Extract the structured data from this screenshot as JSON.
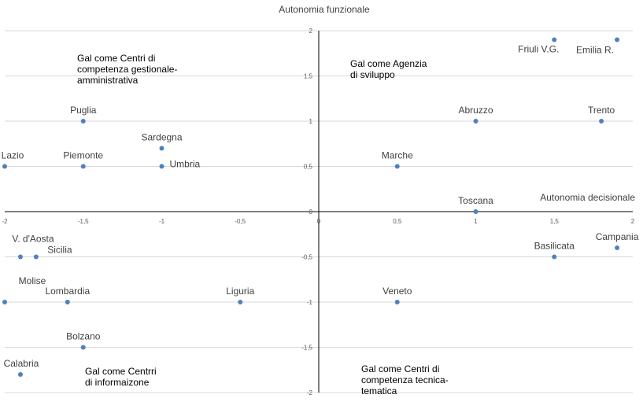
{
  "chart_data": {
    "type": "scatter",
    "title": "",
    "xlabel": "Autonomia decisionale",
    "ylabel": "Autonomia funzionale",
    "xlim": [
      -2,
      2
    ],
    "ylim": [
      -2,
      2
    ],
    "grid": true,
    "marker_color": "#4f81bd",
    "x_ticks": [
      "-2",
      "-1,5",
      "-1",
      "-0,5",
      "0",
      "0,5",
      "1",
      "1,5",
      "2"
    ],
    "y_ticks": [
      "2",
      "1,5",
      "1",
      "0,5",
      "0",
      "-0,5",
      "-1",
      "-1,5",
      "-2"
    ],
    "points": [
      {
        "label": "Friuli V.G.",
        "x": 1.5,
        "y": 1.9
      },
      {
        "label": "Emilia R.",
        "x": 1.9,
        "y": 1.9
      },
      {
        "label": "Abruzzo",
        "x": 1,
        "y": 1
      },
      {
        "label": "Trento",
        "x": 1.8,
        "y": 1
      },
      {
        "label": "Puglia",
        "x": -1.5,
        "y": 1
      },
      {
        "label": "Sardegna",
        "x": -1,
        "y": 0.7
      },
      {
        "label": "Lazio",
        "x": -2,
        "y": 0.5
      },
      {
        "label": "Piemonte",
        "x": -1.5,
        "y": 0.5
      },
      {
        "label": "Umbria",
        "x": -1,
        "y": 0.5
      },
      {
        "label": "Marche",
        "x": 0.5,
        "y": 0.5
      },
      {
        "label": "Toscana",
        "x": 1,
        "y": 0
      },
      {
        "label": "V. d'Aosta",
        "x": -1.9,
        "y": -0.5
      },
      {
        "label": "Sicilia",
        "x": -1.8,
        "y": -0.5
      },
      {
        "label": "Basilicata",
        "x": 1.5,
        "y": -0.5
      },
      {
        "label": "Campania",
        "x": 1.9,
        "y": -0.4
      },
      {
        "label": "Molise",
        "x": -2,
        "y": -1
      },
      {
        "label": "Lombardia",
        "x": -1.6,
        "y": -1
      },
      {
        "label": "Liguria",
        "x": -0.5,
        "y": -1
      },
      {
        "label": "Veneto",
        "x": 0.5,
        "y": -1
      },
      {
        "label": "Bolzano",
        "x": -1.5,
        "y": -1.5
      },
      {
        "label": "Calabria",
        "x": -1.9,
        "y": -1.8
      }
    ],
    "annotations": [
      {
        "lines": [
          "Gal come Centri di",
          "competenza gestionale-",
          "amministrativa"
        ]
      },
      {
        "lines": [
          "Gal come Agenzia",
          "di sviluppo"
        ]
      },
      {
        "lines": [
          "Gal come Centrri",
          "di informaizone"
        ]
      },
      {
        "lines": [
          "Gal come Centri di",
          "competenza tecnica-",
          "tematica"
        ]
      }
    ]
  }
}
